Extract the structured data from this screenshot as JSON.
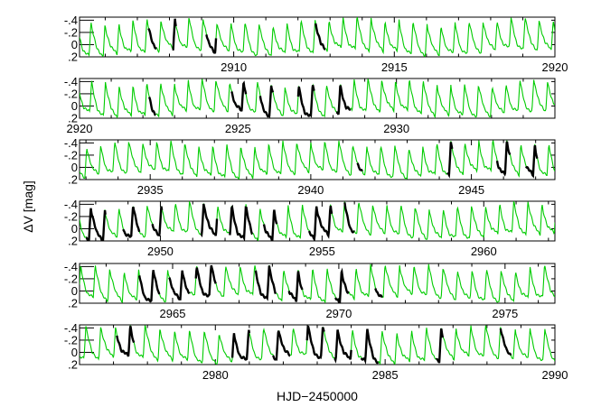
{
  "chart_data": {
    "type": "line",
    "xlabel": "HJD−2450000",
    "ylabel": "ΔV [mag]",
    "y_inverted": true,
    "ylim": [
      0.2,
      -0.45
    ],
    "y_ticks": [
      -0.4,
      -0.2,
      0,
      0.2
    ],
    "y_tick_labels": [
      "-.4",
      "-.2",
      "0",
      ".2"
    ],
    "period_days": 0.436,
    "series": [
      {
        "color": "#00cc00",
        "style": "line",
        "role": "model fit"
      },
      {
        "color": "#000000",
        "style": "points",
        "role": "observations"
      }
    ],
    "panels": [
      {
        "xlim": [
          2905.2,
          2920.0
        ],
        "x_ticks": [
          2910,
          2915,
          2920
        ],
        "x_tick_labels": [
          "2910",
          "2915",
          "2920"
        ],
        "observation_segments": [
          [
            2907.35,
            2907.6
          ],
          [
            2908.1,
            2908.2
          ],
          [
            2909.15,
            2909.45
          ],
          [
            2912.55,
            2912.85
          ]
        ]
      },
      {
        "xlim": [
          2920.0,
          2935.0
        ],
        "x_ticks": [
          2920,
          2925,
          2930
        ],
        "x_tick_labels": [
          "2920",
          "2925",
          "2930"
        ],
        "observation_segments": [
          [
            2922.2,
            2922.4
          ],
          [
            2924.8,
            2925.25
          ],
          [
            2925.7,
            2926.1
          ],
          [
            2926.9,
            2927.4
          ],
          [
            2928.1,
            2928.55
          ]
        ]
      },
      {
        "xlim": [
          2932.8,
          2947.6
        ],
        "x_ticks": [
          2935,
          2940,
          2945
        ],
        "x_tick_labels": [
          "2935",
          "2940",
          "2945"
        ],
        "observation_segments": [
          [
            2941.45,
            2941.6
          ],
          [
            2944.25,
            2944.4
          ],
          [
            2945.8,
            2946.2
          ],
          [
            2946.7,
            2947.05
          ]
        ]
      },
      {
        "xlim": [
          2947.5,
          2962.2
        ],
        "x_ticks": [
          2950,
          2955,
          2960
        ],
        "x_tick_labels": [
          "2950",
          "2955",
          "2960"
        ],
        "observation_segments": [
          [
            2947.7,
            2948.3
          ],
          [
            2948.85,
            2949.35
          ],
          [
            2949.75,
            2950.05
          ],
          [
            2951.25,
            2951.75
          ],
          [
            2952.15,
            2952.85
          ],
          [
            2953.2,
            2953.6
          ],
          [
            2954.6,
            2955.3
          ],
          [
            2955.7,
            2956.0
          ]
        ]
      },
      {
        "xlim": [
          2962.2,
          2976.5
        ],
        "x_ticks": [
          2965,
          2970,
          2975
        ],
        "x_tick_labels": [
          "2965",
          "2970",
          "2975"
        ],
        "observation_segments": [
          [
            2964.0,
            2964.6
          ],
          [
            2964.9,
            2965.5
          ],
          [
            2965.7,
            2966.3
          ],
          [
            2967.5,
            2968.1
          ],
          [
            2968.5,
            2968.9
          ],
          [
            2969.9,
            2970.3
          ],
          [
            2971.1,
            2971.3
          ]
        ]
      },
      {
        "xlim": [
          2976.0,
          2990.0
        ],
        "x_ticks": [
          2980,
          2985,
          2990
        ],
        "x_tick_labels": [
          "2980",
          "2985",
          "2990"
        ],
        "observation_segments": [
          [
            2977.1,
            2977.6
          ],
          [
            2980.5,
            2981.0
          ],
          [
            2981.7,
            2982.2
          ],
          [
            2982.7,
            2983.2
          ],
          [
            2983.5,
            2984.0
          ],
          [
            2984.3,
            2984.8
          ],
          [
            2986.5,
            2986.7
          ],
          [
            2988.4,
            2988.7
          ]
        ]
      }
    ]
  }
}
